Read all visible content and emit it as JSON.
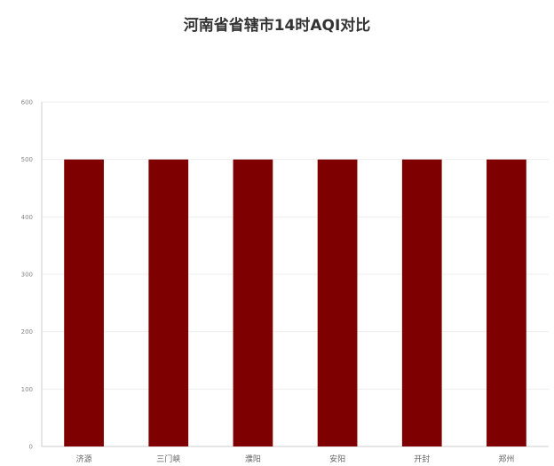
{
  "chart_data": {
    "type": "bar",
    "title": "河南省省辖市14时AQI对比",
    "categories": [
      "济源",
      "三门峡",
      "濮阳",
      "安阳",
      "开封",
      "郑州"
    ],
    "values": [
      500,
      500,
      500,
      500,
      500,
      500
    ],
    "ylim": [
      0,
      600
    ],
    "yticks": [
      0,
      100,
      200,
      300,
      400,
      500,
      600
    ],
    "bar_color": "#7f0000",
    "grid": true,
    "xlabel": "",
    "ylabel": ""
  }
}
